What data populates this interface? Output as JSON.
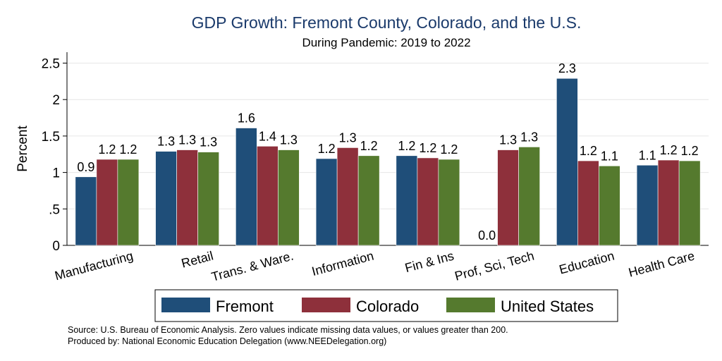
{
  "chart_data": {
    "type": "bar",
    "title": "GDP Growth: Fremont County, Colorado, and the U.S.",
    "subtitle": "During Pandemic: 2019 to 2022",
    "xlabel": "",
    "ylabel": "Percent",
    "ylim": [
      0,
      2.65
    ],
    "yticks": [
      {
        "value": 0,
        "label": "0"
      },
      {
        "value": 0.5,
        "label": ".5"
      },
      {
        "value": 1,
        "label": "1"
      },
      {
        "value": 1.5,
        "label": "1.5"
      },
      {
        "value": 2,
        "label": "2"
      },
      {
        "value": 2.5,
        "label": "2.5"
      }
    ],
    "grid": true,
    "legend_position": "bottom",
    "categories": [
      "Manufacturing",
      "Retail",
      "Trans. & Ware.",
      "Information",
      "Fin & Ins",
      "Prof, Sci, Tech",
      "Education",
      "Health Care"
    ],
    "series": [
      {
        "name": "Fremont",
        "color": "#1f4e79",
        "values": [
          0.94,
          1.29,
          1.61,
          1.19,
          1.23,
          0.0,
          2.29,
          1.1
        ],
        "labels": [
          "0.9",
          "1.3",
          "1.6",
          "1.2",
          "1.2",
          "0.0",
          "2.3",
          "1.1"
        ]
      },
      {
        "name": "Colorado",
        "color": "#8e303b",
        "values": [
          1.18,
          1.31,
          1.36,
          1.34,
          1.2,
          1.31,
          1.16,
          1.17
        ],
        "labels": [
          "1.2",
          "1.3",
          "1.4",
          "1.3",
          "1.2",
          "1.3",
          "1.2",
          "1.2"
        ]
      },
      {
        "name": "United States",
        "color": "#557a2e",
        "values": [
          1.18,
          1.28,
          1.31,
          1.23,
          1.18,
          1.35,
          1.09,
          1.16
        ],
        "labels": [
          "1.2",
          "1.3",
          "1.3",
          "1.2",
          "1.2",
          "1.3",
          "1.1",
          "1.2"
        ]
      }
    ]
  },
  "footer": {
    "source": "Source: U.S. Bureau of Economic Analysis. Zero values indicate missing data values, or values greater than 200.",
    "produced_by": "Produced by: National Economic Education Delegation (www.NEEDelegation.org)"
  }
}
